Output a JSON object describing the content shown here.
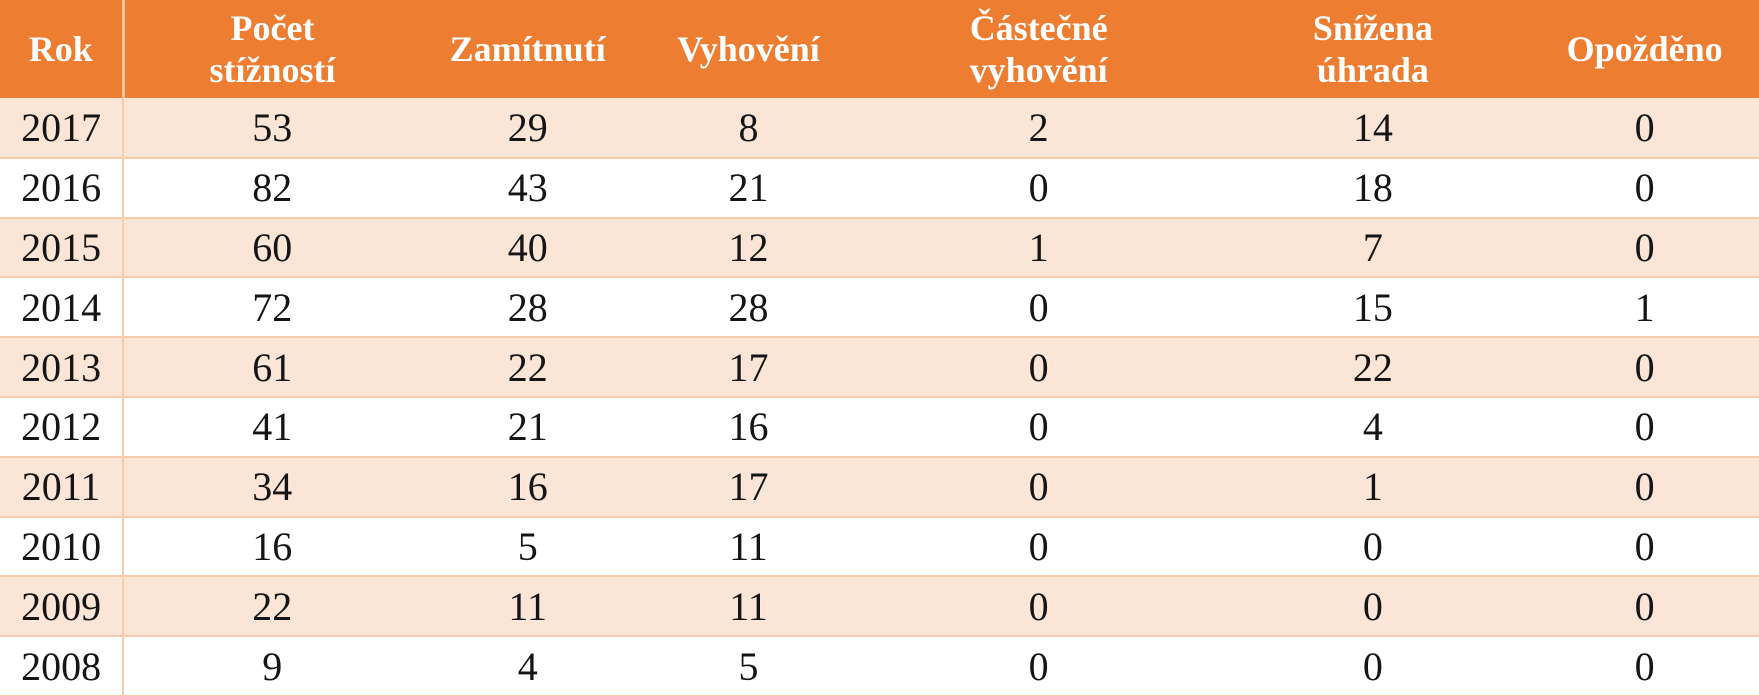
{
  "table": {
    "columns": [
      {
        "key": "rok",
        "label": "Rok"
      },
      {
        "key": "pocet",
        "label": "Počet\nstížností"
      },
      {
        "key": "zamitnuti",
        "label": "Zamítnutí"
      },
      {
        "key": "vyhoveni",
        "label": "Vyhovění"
      },
      {
        "key": "castecne",
        "label": "Částečné\nvyhovění"
      },
      {
        "key": "snizena",
        "label": "Snížena\núhrada"
      },
      {
        "key": "opozdeno",
        "label": "Opožděno"
      }
    ],
    "rows": [
      [
        "2017",
        "53",
        "29",
        "8",
        "2",
        "14",
        "0"
      ],
      [
        "2016",
        "82",
        "43",
        "21",
        "0",
        "18",
        "0"
      ],
      [
        "2015",
        "60",
        "40",
        "12",
        "1",
        "7",
        "0"
      ],
      [
        "2014",
        "72",
        "28",
        "28",
        "0",
        "15",
        "1"
      ],
      [
        "2013",
        "61",
        "22",
        "17",
        "0",
        "22",
        "0"
      ],
      [
        "2012",
        "41",
        "21",
        "16",
        "0",
        "4",
        "0"
      ],
      [
        "2011",
        "34",
        "16",
        "17",
        "0",
        "1",
        "0"
      ],
      [
        "2010",
        "16",
        "5",
        "11",
        "0",
        "0",
        "0"
      ],
      [
        "2009",
        "22",
        "11",
        "11",
        "0",
        "0",
        "0"
      ],
      [
        "2008",
        "9",
        "4",
        "5",
        "0",
        "0",
        "0"
      ]
    ]
  },
  "chart_data": {
    "type": "table",
    "columns": [
      "Rok",
      "Počet stížností",
      "Zamítnutí",
      "Vyhovění",
      "Částečné vyhovění",
      "Snížena úhrada",
      "Opožděno"
    ],
    "rows": [
      [
        2017,
        53,
        29,
        8,
        2,
        14,
        0
      ],
      [
        2016,
        82,
        43,
        21,
        0,
        18,
        0
      ],
      [
        2015,
        60,
        40,
        12,
        1,
        7,
        0
      ],
      [
        2014,
        72,
        28,
        28,
        0,
        15,
        1
      ],
      [
        2013,
        61,
        22,
        17,
        0,
        22,
        0
      ],
      [
        2012,
        41,
        21,
        16,
        0,
        4,
        0
      ],
      [
        2011,
        34,
        16,
        17,
        0,
        1,
        0
      ],
      [
        2010,
        16,
        5,
        11,
        0,
        0,
        0
      ],
      [
        2009,
        22,
        11,
        11,
        0,
        0,
        0
      ],
      [
        2008,
        9,
        4,
        5,
        0,
        0,
        0
      ]
    ],
    "title": "",
    "legend": false,
    "row_striping": "alternating starting with shaded row at top"
  },
  "colors": {
    "header_bg": "#ED7D31",
    "header_text": "#FFFFFF",
    "row_stripe_bg": "#FBE5D6",
    "row_plain_bg": "#FFFFFF",
    "border": "#F8CBAD",
    "header_divider": "#F6B183",
    "body_text": "#151515"
  }
}
